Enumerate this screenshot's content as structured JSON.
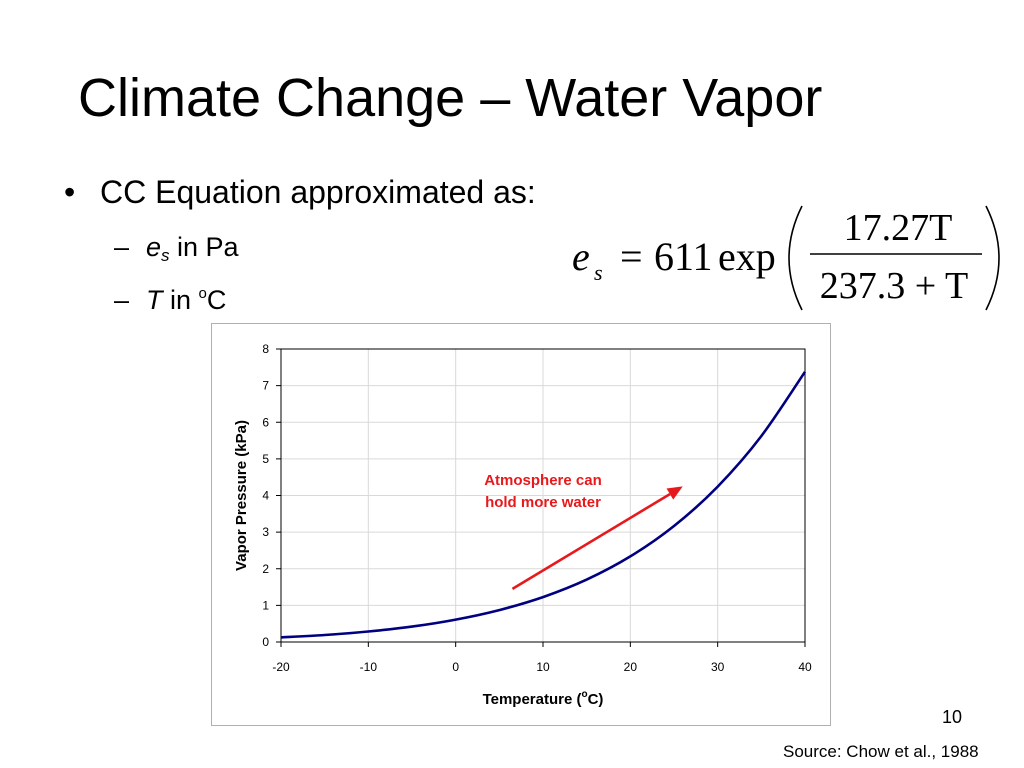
{
  "slide": {
    "title": "Climate Change – Water Vapor",
    "bullet": "CC Equation approximated as:",
    "sub_items": [
      {
        "var": "e",
        "subscript": "s",
        "text": " in Pa"
      },
      {
        "var": "T",
        "text": " in ",
        "superscript": "o",
        "unit": "C"
      }
    ],
    "equation": {
      "lhs_var": "e",
      "lhs_sub": "s",
      "equals": "=",
      "coefficient": "611",
      "func": "exp",
      "numerator": "17.27T",
      "denominator": "237.3 + T"
    },
    "page_number": "10",
    "source": "Source: Chow et al., 1988"
  },
  "chart_data": {
    "type": "line",
    "title": "",
    "xlabel": "Temperature (°C)",
    "xlabel_parts": {
      "prefix": "Temperature (",
      "sup": "o",
      "suffix": "C)"
    },
    "ylabel": "Vapor Pressure (kPa)",
    "xlim": [
      -20,
      40
    ],
    "ylim": [
      0,
      8
    ],
    "x_ticks": [
      -20,
      -10,
      0,
      10,
      20,
      30,
      40
    ],
    "y_ticks": [
      0,
      1,
      2,
      3,
      4,
      5,
      6,
      7,
      8
    ],
    "grid": true,
    "legend": "none",
    "series": [
      {
        "color": "#000080",
        "x": [
          -20,
          -15,
          -10,
          -5,
          0,
          5,
          10,
          15,
          20,
          25,
          30,
          35,
          40
        ],
        "y": [
          0.125,
          0.191,
          0.286,
          0.421,
          0.611,
          0.872,
          1.227,
          1.704,
          2.337,
          3.167,
          4.243,
          5.623,
          7.378
        ]
      }
    ],
    "annotation": {
      "text_lines": [
        "Atmosphere can",
        "hold more water"
      ],
      "color": "#e8191c",
      "arrow_start": [
        6.5,
        1.45
      ],
      "arrow_end": [
        26,
        4.25
      ]
    }
  }
}
